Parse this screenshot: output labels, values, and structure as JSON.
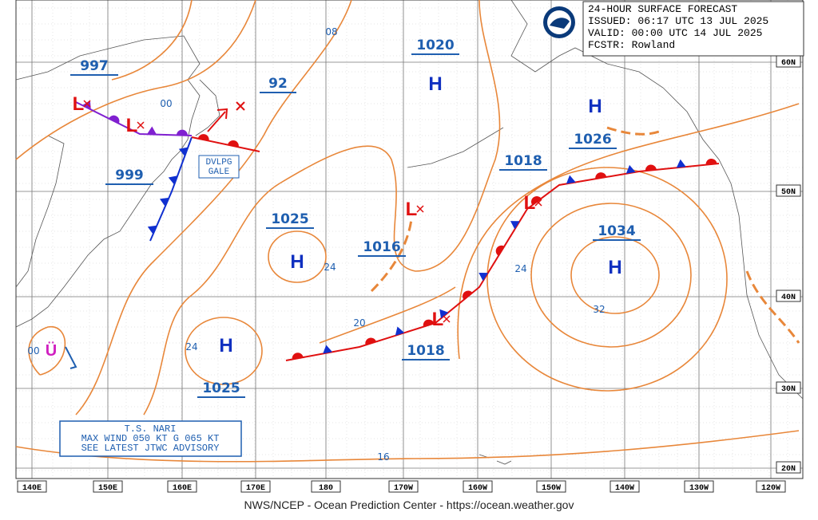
{
  "header": {
    "title": "24-HOUR SURFACE FORECAST",
    "issued": "ISSUED: 06:17 UTC 13 JUL 2025",
    "valid": "VALID:  00:00 UTC 14 JUL 2025",
    "forecaster": "FCSTR:  Rowland"
  },
  "footer": "NWS/NCEP - Ocean Prediction Center - https://ocean.weather.gov",
  "lat_labels": [
    "60N",
    "50N",
    "40N",
    "30N",
    "20N"
  ],
  "lon_labels": [
    "140E",
    "150E",
    "160E",
    "170E",
    "180",
    "170W",
    "160W",
    "150W",
    "140W",
    "130W",
    "120W"
  ],
  "pressure_centers": [
    {
      "symbol": "L",
      "value": 997
    },
    {
      "symbol": "L",
      "value": 999
    },
    {
      "symbol": "H",
      "value": 1020
    },
    {
      "symbol": "H",
      "value": 1026
    },
    {
      "symbol": "L",
      "value": 1018
    },
    {
      "symbol": "H",
      "value": 1034
    },
    {
      "symbol": "L",
      "value": 1016
    },
    {
      "symbol": "H",
      "value": 1025
    },
    {
      "symbol": "H",
      "value": 1025
    },
    {
      "symbol": "L",
      "value": 1018
    }
  ],
  "pressure_labels": [
    "92"
  ],
  "contour_labels": [
    "08",
    "00",
    "24",
    "24",
    "20",
    "24",
    "32",
    "16",
    "00"
  ],
  "warnings": {
    "gale": [
      "DVLPG",
      "GALE"
    ],
    "storm": [
      "T.S. NARI",
      "MAX WIND 050 KT G 065 KT",
      "SEE LATEST JTWC ADVISORY"
    ]
  }
}
